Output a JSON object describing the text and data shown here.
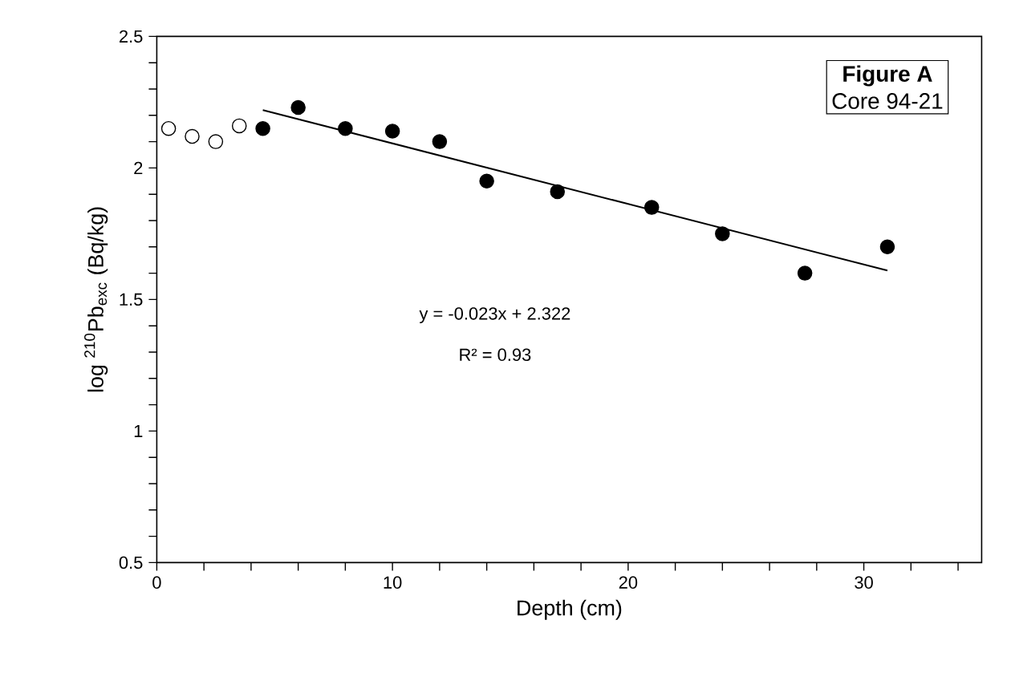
{
  "chart_data": {
    "type": "scatter",
    "title": "Figure A",
    "subtitle": "Core 94-21",
    "xlabel": "Depth (cm)",
    "ylabel": "log $^{210}$Pb$_{exc}$ (Bq/kg)",
    "xlim": [
      0,
      35
    ],
    "ylim": [
      0.5,
      2.5
    ],
    "xticks": [
      0,
      {
        "value": 2,
        "label": null
      },
      {
        "value": 4,
        "label": null
      },
      {
        "value": 6,
        "label": null
      },
      {
        "value": 8,
        "label": null
      },
      10,
      {
        "value": 12,
        "label": null
      },
      {
        "value": 14,
        "label": null
      },
      {
        "value": 16,
        "label": null
      },
      {
        "value": 18,
        "label": null
      },
      20,
      {
        "value": 22,
        "label": null
      },
      {
        "value": 24,
        "label": null
      },
      {
        "value": 26,
        "label": null
      },
      {
        "value": 28,
        "label": null
      },
      30,
      {
        "value": 32,
        "label": null
      },
      {
        "value": 34,
        "label": null
      }
    ],
    "yticks": [
      0.5,
      {
        "value": 0.6,
        "label": null
      },
      {
        "value": 0.7,
        "label": null
      },
      {
        "value": 0.8,
        "label": null
      },
      {
        "value": 0.9,
        "label": null
      },
      1,
      {
        "value": 1.1,
        "label": null
      },
      {
        "value": 1.2,
        "label": null
      },
      {
        "value": 1.3,
        "label": null
      },
      {
        "value": 1.4,
        "label": null
      },
      1.5,
      {
        "value": 1.6,
        "label": null
      },
      {
        "value": 1.7,
        "label": null
      },
      {
        "value": 1.8,
        "label": null
      },
      {
        "value": 1.9,
        "label": null
      },
      2,
      {
        "value": 2.1,
        "label": null
      },
      {
        "value": 2.2,
        "label": null
      },
      {
        "value": 2.3,
        "label": null
      },
      {
        "value": 2.4,
        "label": null
      },
      2.5
    ],
    "annotations": [
      "y = -0.023x + 2.322",
      "R² = 0.93"
    ],
    "series": [
      {
        "type": "scatter",
        "marker": "circle",
        "color": "#ffffff",
        "x": [
          0.5,
          1.5,
          2.5,
          3.5
        ],
        "values": [
          2.15,
          2.12,
          2.1,
          2.16
        ]
      },
      {
        "type": "scatter",
        "marker": "circle",
        "color": "#000000",
        "x": [
          4.5,
          6,
          8,
          10,
          12,
          14,
          17,
          21,
          24,
          27.5,
          31
        ],
        "values": [
          2.15,
          2.23,
          2.15,
          2.14,
          2.1,
          1.95,
          1.91,
          1.85,
          1.75,
          1.6,
          1.7
        ]
      },
      {
        "type": "line",
        "marker": "none",
        "color": "#000000",
        "x": [
          4.5,
          31
        ],
        "values": [
          2.22,
          1.61
        ]
      }
    ]
  }
}
